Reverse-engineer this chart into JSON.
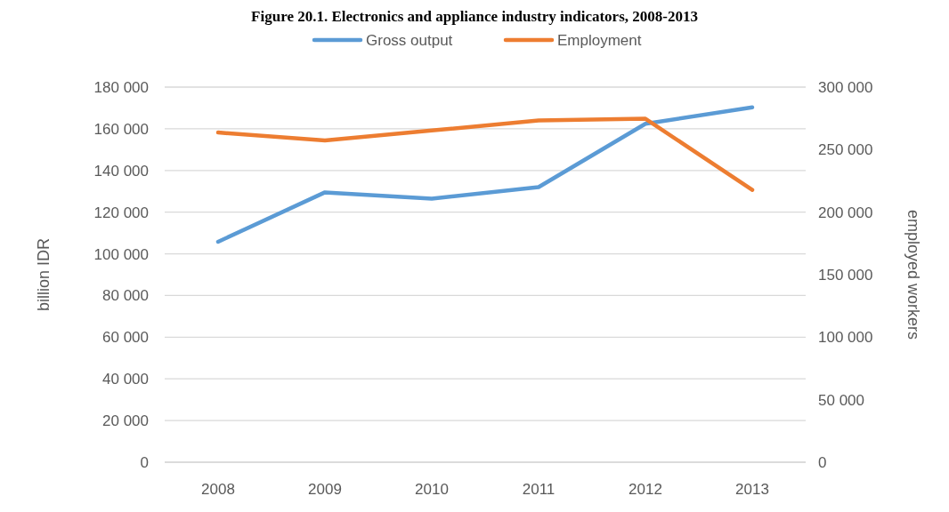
{
  "chart_data": {
    "type": "line",
    "title": "Figure 20.1. Electronics and appliance industry indicators, 2008-2013",
    "categories": [
      "2008",
      "2009",
      "2010",
      "2011",
      "2012",
      "2013"
    ],
    "series": [
      {
        "name": "Gross output",
        "color": "#5b9bd5",
        "values": [
          105800,
          129500,
          126500,
          132000,
          162400,
          170300
        ]
      },
      {
        "name": "Employment",
        "color": "#ed7d31",
        "values": [
          263700,
          257300,
          265300,
          273300,
          274700,
          217800
        ],
        "axis": "y2"
      }
    ],
    "ylabel": "billion IDR",
    "y2label": "employed workers",
    "ylim": [
      0,
      180000
    ],
    "yticks": [
      {
        "value": 0,
        "label": "0"
      },
      {
        "value": 20000,
        "label": "20 000"
      },
      {
        "value": 40000,
        "label": "40 000"
      },
      {
        "value": 60000,
        "label": "60 000"
      },
      {
        "value": 80000,
        "label": "80 000"
      },
      {
        "value": 100000,
        "label": "100 000"
      },
      {
        "value": 120000,
        "label": "120 000"
      },
      {
        "value": 140000,
        "label": "140 000"
      },
      {
        "value": 160000,
        "label": "160 000"
      },
      {
        "value": 180000,
        "label": "180 000"
      }
    ],
    "y2lim": [
      0,
      300000
    ],
    "y2ticks": [
      {
        "value": 0,
        "label": "0"
      },
      {
        "value": 50000,
        "label": "50 000"
      },
      {
        "value": 100000,
        "label": "100 000"
      },
      {
        "value": 150000,
        "label": "150 000"
      },
      {
        "value": 200000,
        "label": "200 000"
      },
      {
        "value": 250000,
        "label": "250 000"
      },
      {
        "value": 300000,
        "label": "300 000"
      }
    ],
    "grid": "y",
    "legend": "top",
    "marker": "none",
    "line_style": "solid"
  }
}
